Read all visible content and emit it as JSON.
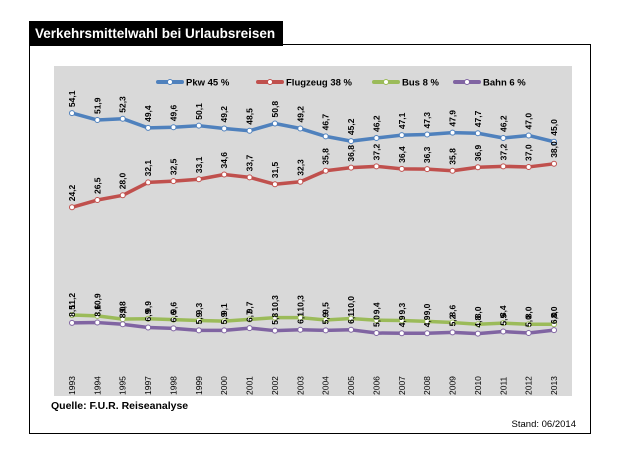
{
  "title": "Verkehrsmittelwahl bei Urlaubsreisen",
  "source": "Quelle: F.U.R. Reiseanalyse",
  "stand": "Stand: 06/2014",
  "chart_data": {
    "type": "line",
    "title": "Verkehrsmittelwahl bei Urlaubsreisen",
    "x": [
      "1993",
      "1994",
      "1995",
      "1997",
      "1998",
      "1999",
      "2000",
      "2001",
      "2002",
      "2003",
      "2004",
      "2005",
      "2006",
      "2007",
      "2008",
      "2009",
      "2010",
      "2011",
      "2012",
      "2013"
    ],
    "grid": false,
    "legend_position": "top",
    "series": [
      {
        "name": "Pkw 45 %",
        "color": "#4f81bd",
        "values": [
          54.1,
          51.9,
          52.3,
          49.4,
          49.6,
          50.1,
          49.2,
          48.5,
          50.8,
          49.2,
          46.7,
          45.2,
          46.2,
          47.1,
          47.3,
          47.9,
          47.7,
          46.2,
          47.0,
          45.0
        ],
        "labels": [
          "54,1",
          "51,9",
          "52,3",
          "49,4",
          "49,6",
          "50,1",
          "49,2",
          "48,5",
          "50,8",
          "49,2",
          "46,7",
          "45,2",
          "46,2",
          "47,1",
          "47,3",
          "47,9",
          "47,7",
          "46,2",
          "47,0",
          "45,0"
        ]
      },
      {
        "name": "Flugzeug 38 %",
        "color": "#c0504d",
        "values": [
          24.2,
          26.5,
          28.0,
          32.1,
          32.5,
          33.1,
          34.6,
          33.7,
          31.5,
          32.3,
          35.8,
          36.8,
          37.2,
          36.4,
          36.3,
          35.8,
          36.9,
          37.2,
          37.0,
          38.0
        ],
        "labels": [
          "24,2",
          "26,5",
          "28,0",
          "32,1",
          "32,5",
          "33,1",
          "34,6",
          "33,7",
          "31,5",
          "32,3",
          "35,8",
          "36,8",
          "37,2",
          "36,4",
          "36,3",
          "35,8",
          "36,9",
          "37,2",
          "37,0",
          "38,0"
        ]
      },
      {
        "name": "Bus 8 %",
        "color": "#9bbb59",
        "values": [
          11.2,
          10.9,
          9.8,
          9.9,
          9.6,
          9.3,
          9.1,
          9.7,
          10.3,
          10.3,
          9.5,
          10.0,
          9.4,
          9.3,
          9.0,
          8.6,
          8.0,
          8.4,
          8.0,
          8.0
        ],
        "labels": [
          "11,2",
          "10,9",
          "9,8",
          "9,9",
          "9,6",
          "9,3",
          "9,1",
          "9,7",
          "10,3",
          "10,3",
          "9,5",
          "10,0",
          "9,4",
          "9,3",
          "9,0",
          "8,6",
          "8,0",
          "8,4",
          "8,0",
          "8,0"
        ]
      },
      {
        "name": "Bahn 6 %",
        "color": "#8064a2",
        "values": [
          8.5,
          8.6,
          8.0,
          6.9,
          6.6,
          5.9,
          5.9,
          6.7,
          5.8,
          6.1,
          5.9,
          6.1,
          5.0,
          4.9,
          4.9,
          5.2,
          4.8,
          5.5,
          5.0,
          6.0
        ],
        "labels": [
          "8,5",
          "8,6",
          "8,0",
          "6,9",
          "6,6",
          "5,9",
          "5,9",
          "6,7",
          "5,8",
          "6,1",
          "5,9",
          "6,1",
          "5,0",
          "4,9",
          "4,9",
          "5,2",
          "4,8",
          "5,5",
          "5,0",
          "6,0"
        ]
      }
    ]
  }
}
